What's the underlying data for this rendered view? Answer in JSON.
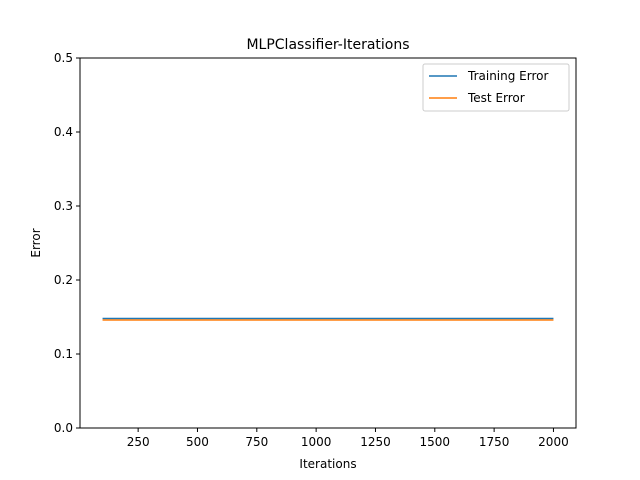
{
  "chart_data": {
    "type": "line",
    "title": "MLPClassifier-Iterations",
    "xlabel": "Iterations",
    "ylabel": "Error",
    "xlim": [
      5,
      2095
    ],
    "ylim": [
      0,
      0.5
    ],
    "xticks": [
      250,
      500,
      750,
      1000,
      1250,
      1500,
      1750,
      2000
    ],
    "xtick_labels": [
      "250",
      "500",
      "750",
      "1000",
      "1250",
      "1500",
      "1750",
      "2000"
    ],
    "yticks": [
      0.0,
      0.1,
      0.2,
      0.3,
      0.4,
      0.5
    ],
    "ytick_labels": [
      "0.0",
      "0.1",
      "0.2",
      "0.3",
      "0.4",
      "0.5"
    ],
    "grid": false,
    "legend_position": "top-right",
    "series": [
      {
        "name": "Training Error",
        "color": "#1f77b4",
        "x": [
          100,
          200,
          300,
          400,
          500,
          600,
          700,
          800,
          900,
          1000,
          1100,
          1200,
          1300,
          1400,
          1500,
          1600,
          1700,
          1800,
          1900,
          2000
        ],
        "y": [
          0.148,
          0.148,
          0.148,
          0.148,
          0.148,
          0.148,
          0.148,
          0.148,
          0.148,
          0.148,
          0.148,
          0.148,
          0.148,
          0.148,
          0.148,
          0.148,
          0.148,
          0.148,
          0.148,
          0.148
        ]
      },
      {
        "name": "Test Error",
        "color": "#ff7f0e",
        "x": [
          100,
          200,
          300,
          400,
          500,
          600,
          700,
          800,
          900,
          1000,
          1100,
          1200,
          1300,
          1400,
          1500,
          1600,
          1700,
          1800,
          1900,
          2000
        ],
        "y": [
          0.146,
          0.146,
          0.146,
          0.146,
          0.146,
          0.146,
          0.146,
          0.146,
          0.146,
          0.146,
          0.146,
          0.146,
          0.146,
          0.146,
          0.146,
          0.146,
          0.146,
          0.146,
          0.146,
          0.146
        ]
      }
    ]
  }
}
